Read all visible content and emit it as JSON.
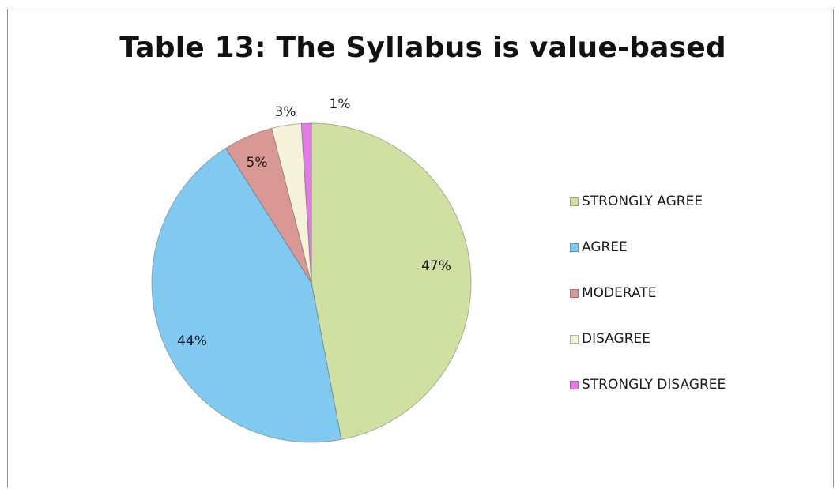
{
  "chart_data": {
    "type": "pie",
    "title": "Table 13: The Syllabus is value-based",
    "categories": [
      "STRONGLY AGREE",
      "AGREE",
      "MODERATE",
      "DISAGREE",
      "STRONGLY DISAGREE"
    ],
    "values": [
      47,
      44,
      5,
      3,
      1
    ],
    "data_labels": [
      "47%",
      "44%",
      "5%",
      "3%",
      "1%"
    ],
    "colors": [
      "#cfe0a0",
      "#80caf2",
      "#d99894",
      "#f4f3d7",
      "#e37ae8"
    ],
    "legend_position": "right"
  }
}
